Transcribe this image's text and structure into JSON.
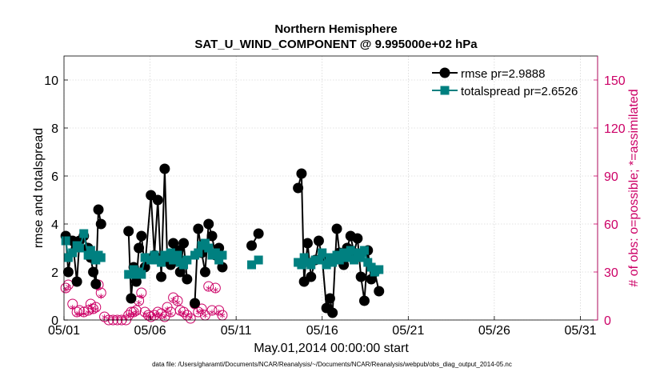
{
  "chart_data": {
    "type": "line",
    "title": "Northern Hemisphere",
    "subtitle": "SAT_U_WIND_COMPONENT @ 9.995000e+02 hPa",
    "xlabel": "May.01,2014 00:00:00 start",
    "ylabel_left": "rmse and totalspread",
    "ylabel_right": "# of obs: o=possible; *=assimilated",
    "xlim": [
      1,
      32
    ],
    "ylim_left": [
      0,
      11
    ],
    "ylim_right": [
      0,
      165
    ],
    "x_tick_values": [
      1,
      6,
      11,
      16,
      21,
      26,
      31
    ],
    "x_tick_labels": [
      "05/01",
      "05/06",
      "05/11",
      "05/16",
      "05/21",
      "05/26",
      "05/31"
    ],
    "y_left_ticks": [
      0,
      2,
      4,
      6,
      8,
      10
    ],
    "y_right_ticks": [
      0,
      30,
      60,
      90,
      120,
      150
    ],
    "grid": true,
    "legend_location": "top-right",
    "footnote": "data file: /Users/gharamti/Documents/NCAR/Reanalysis/~/Documents/NCAR/Reanalysis/webpub/obs_diag_output_2014-05.nc",
    "colors": {
      "rmse": "#000000",
      "totalspread": "#008080",
      "obs": "#cc0066"
    },
    "series": [
      {
        "name": "rmse pr=2.9888",
        "axis": "left",
        "segments": [
          [
            [
              1.1,
              3.5
            ],
            [
              1.25,
              2.0
            ],
            [
              1.5,
              3.3
            ],
            [
              1.75,
              1.6
            ],
            [
              1.9,
              3.3
            ],
            [
              2.15,
              3.5
            ],
            [
              2.4,
              3.0
            ],
            [
              2.55,
              2.6
            ],
            [
              2.7,
              2.0
            ],
            [
              2.85,
              1.5
            ],
            [
              3.0,
              4.6
            ],
            [
              3.15,
              4.0
            ]
          ],
          [
            [
              4.75,
              3.7
            ],
            [
              4.9,
              0.9
            ],
            [
              5.05,
              2.2
            ],
            [
              5.2,
              1.6
            ],
            [
              5.35,
              3.0
            ],
            [
              5.5,
              3.5
            ],
            [
              5.7,
              2.2
            ],
            [
              6.05,
              5.2
            ],
            [
              6.25,
              2.7
            ],
            [
              6.45,
              5.0
            ],
            [
              6.65,
              1.8
            ],
            [
              6.85,
              6.3
            ],
            [
              7.0,
              2.5
            ],
            [
              7.2,
              2.3
            ],
            [
              7.35,
              3.2
            ],
            [
              7.6,
              2.9
            ],
            [
              7.75,
              2.0
            ],
            [
              7.95,
              3.2
            ],
            [
              8.15,
              1.7
            ]
          ],
          [
            [
              8.6,
              0.7
            ],
            [
              8.8,
              3.8
            ],
            [
              9.0,
              2.8
            ],
            [
              9.2,
              2.0
            ],
            [
              9.4,
              4.0
            ],
            [
              9.6,
              3.5
            ],
            [
              9.8,
              2.7
            ],
            [
              10.0,
              3.0
            ],
            [
              10.2,
              2.2
            ]
          ],
          [
            [
              11.9,
              3.1
            ],
            [
              12.3,
              3.6
            ]
          ],
          [
            [
              14.6,
              5.5
            ],
            [
              14.8,
              6.1
            ],
            [
              14.95,
              1.6
            ],
            [
              15.15,
              3.2
            ],
            [
              15.35,
              1.8
            ],
            [
              15.6,
              2.5
            ],
            [
              15.8,
              3.3
            ],
            [
              16.0,
              2.6
            ],
            [
              16.25,
              0.5
            ],
            [
              16.45,
              0.9
            ],
            [
              16.6,
              0.3
            ],
            [
              16.85,
              3.8
            ],
            [
              17.0,
              2.8
            ],
            [
              17.25,
              2.3
            ],
            [
              17.45,
              3.0
            ],
            [
              17.65,
              3.5
            ],
            [
              17.85,
              2.8
            ],
            [
              18.05,
              3.4
            ],
            [
              18.25,
              1.8
            ],
            [
              18.45,
              0.8
            ],
            [
              18.65,
              2.9
            ],
            [
              18.85,
              1.7
            ],
            [
              19.05,
              2.0
            ],
            [
              19.3,
              1.2
            ]
          ]
        ]
      },
      {
        "name": "totalspread pr=2.6526",
        "axis": "left",
        "segments": [
          [
            [
              1.1,
              3.3
            ],
            [
              1.25,
              2.6
            ],
            [
              1.5,
              2.8
            ],
            [
              1.75,
              3.1
            ],
            [
              1.9,
              3.0
            ],
            [
              2.15,
              3.6
            ],
            [
              2.4,
              2.7
            ],
            [
              2.55,
              2.9
            ],
            [
              2.7,
              2.7
            ],
            [
              2.85,
              2.5
            ],
            [
              3.0,
              2.7
            ],
            [
              3.15,
              2.6
            ]
          ],
          [
            [
              4.75,
              1.9
            ],
            [
              4.9,
              1.9
            ],
            [
              5.05,
              2.1
            ],
            [
              5.2,
              1.9
            ],
            [
              5.35,
              2.0
            ],
            [
              5.5,
              1.9
            ],
            [
              5.7,
              2.6
            ],
            [
              6.05,
              2.5
            ],
            [
              6.25,
              2.7
            ],
            [
              6.45,
              2.5
            ],
            [
              6.65,
              2.4
            ],
            [
              6.85,
              2.7
            ],
            [
              7.0,
              2.6
            ],
            [
              7.2,
              2.8
            ],
            [
              7.35,
              2.5
            ],
            [
              7.6,
              2.7
            ],
            [
              7.75,
              2.4
            ],
            [
              7.95,
              2.3
            ],
            [
              8.15,
              2.5
            ]
          ],
          [
            [
              8.6,
              2.7
            ],
            [
              8.8,
              2.8
            ],
            [
              9.0,
              3.1
            ],
            [
              9.2,
              3.2
            ],
            [
              9.4,
              3.0
            ],
            [
              9.6,
              2.7
            ],
            [
              9.8,
              2.8
            ],
            [
              10.0,
              2.5
            ],
            [
              10.2,
              2.7
            ]
          ],
          [
            [
              11.9,
              2.3
            ],
            [
              12.3,
              2.5
            ]
          ],
          [
            [
              14.6,
              2.4
            ],
            [
              14.8,
              2.3
            ],
            [
              14.95,
              2.6
            ],
            [
              15.15,
              2.4
            ],
            [
              15.35,
              2.3
            ],
            [
              15.6,
              2.5
            ],
            [
              15.8,
              2.5
            ],
            [
              16.0,
              2.8
            ],
            [
              16.25,
              2.3
            ],
            [
              16.45,
              2.6
            ],
            [
              16.6,
              2.4
            ],
            [
              16.85,
              2.7
            ],
            [
              17.0,
              2.5
            ],
            [
              17.25,
              2.8
            ],
            [
              17.45,
              2.6
            ],
            [
              17.65,
              2.9
            ],
            [
              17.85,
              2.5
            ],
            [
              18.05,
              2.8
            ],
            [
              18.25,
              2.6
            ],
            [
              18.45,
              2.9
            ],
            [
              18.65,
              2.4
            ],
            [
              18.85,
              2.2
            ],
            [
              19.05,
              2.0
            ],
            [
              19.3,
              2.1
            ]
          ]
        ]
      }
    ],
    "obs_possible": [
      [
        1.1,
        20
      ],
      [
        1.25,
        22
      ],
      [
        1.5,
        10
      ],
      [
        1.75,
        5
      ],
      [
        1.9,
        6
      ],
      [
        2.15,
        5
      ],
      [
        2.4,
        6
      ],
      [
        2.55,
        10
      ],
      [
        2.7,
        7
      ],
      [
        2.85,
        8
      ],
      [
        3.0,
        22
      ],
      [
        3.15,
        17
      ],
      [
        3.35,
        2
      ],
      [
        3.6,
        0
      ],
      [
        3.85,
        0
      ],
      [
        4.1,
        0
      ],
      [
        4.35,
        0
      ],
      [
        4.6,
        0
      ],
      [
        4.75,
        3
      ],
      [
        4.9,
        5
      ],
      [
        5.05,
        5
      ],
      [
        5.2,
        6
      ],
      [
        5.35,
        12
      ],
      [
        5.5,
        17
      ],
      [
        5.7,
        5
      ],
      [
        5.9,
        3
      ],
      [
        6.05,
        2
      ],
      [
        6.25,
        3
      ],
      [
        6.45,
        5
      ],
      [
        6.65,
        4
      ],
      [
        6.85,
        2
      ],
      [
        7.0,
        8
      ],
      [
        7.2,
        5
      ],
      [
        7.35,
        14
      ],
      [
        7.6,
        12
      ],
      [
        7.75,
        6
      ],
      [
        7.95,
        5
      ],
      [
        8.15,
        3
      ],
      [
        8.35,
        1
      ],
      [
        8.6,
        10
      ],
      [
        8.8,
        5
      ],
      [
        9.0,
        7
      ],
      [
        9.2,
        3
      ],
      [
        9.4,
        21
      ],
      [
        9.6,
        6
      ],
      [
        9.8,
        20
      ],
      [
        10.0,
        6
      ],
      [
        10.2,
        3
      ]
    ],
    "obs_assimilated": [
      [
        1.1,
        18
      ],
      [
        1.25,
        20
      ],
      [
        1.5,
        7
      ],
      [
        1.75,
        3
      ],
      [
        1.9,
        3
      ],
      [
        2.15,
        3
      ],
      [
        2.4,
        4
      ],
      [
        2.55,
        8
      ],
      [
        2.7,
        5
      ],
      [
        2.85,
        6
      ],
      [
        3.0,
        19
      ],
      [
        3.15,
        14
      ],
      [
        3.35,
        1
      ],
      [
        3.6,
        0
      ],
      [
        3.85,
        0
      ],
      [
        4.1,
        0
      ],
      [
        4.35,
        0
      ],
      [
        4.6,
        0
      ],
      [
        4.75,
        2
      ],
      [
        4.9,
        3
      ],
      [
        5.05,
        3
      ],
      [
        5.2,
        4
      ],
      [
        5.35,
        10
      ],
      [
        5.5,
        14
      ],
      [
        5.7,
        3
      ],
      [
        5.9,
        1
      ],
      [
        6.05,
        1
      ],
      [
        6.25,
        2
      ],
      [
        6.45,
        3
      ],
      [
        6.65,
        2
      ],
      [
        6.85,
        1
      ],
      [
        7.0,
        6
      ],
      [
        7.2,
        3
      ],
      [
        7.35,
        12
      ],
      [
        7.6,
        10
      ],
      [
        7.75,
        4
      ],
      [
        7.95,
        3
      ],
      [
        8.15,
        2
      ],
      [
        8.35,
        1
      ],
      [
        8.6,
        8
      ],
      [
        8.8,
        4
      ],
      [
        9.0,
        5
      ],
      [
        9.2,
        2
      ],
      [
        9.4,
        19
      ],
      [
        9.6,
        4
      ],
      [
        9.8,
        18
      ],
      [
        10.0,
        4
      ],
      [
        10.2,
        2
      ]
    ]
  }
}
